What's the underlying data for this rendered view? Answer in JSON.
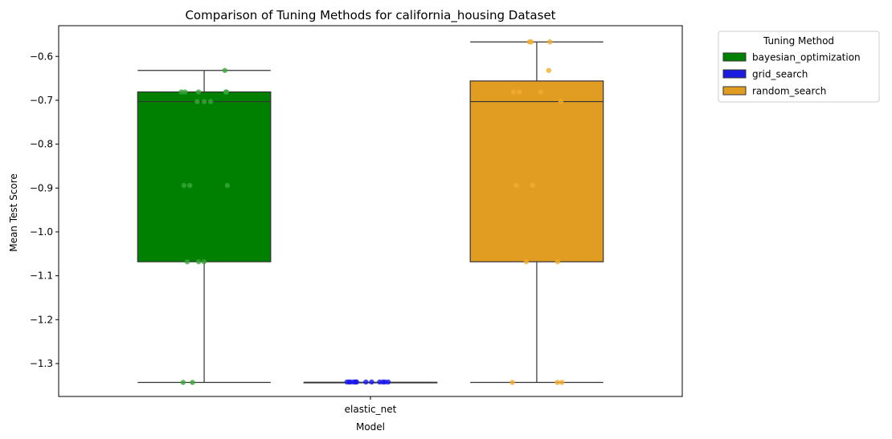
{
  "chart_data": {
    "type": "box",
    "title": "Comparison of Tuning Methods for california_housing Dataset",
    "xlabel": "Model",
    "ylabel": "Mean Test Score",
    "categories": [
      "elastic_net"
    ],
    "ylim": [
      -1.375,
      -0.53
    ],
    "yticks": [
      -0.6,
      -0.7,
      -0.8,
      -0.9,
      -1.0,
      -1.1,
      -1.2,
      -1.3
    ],
    "ytick_labels": [
      "−0.6",
      "−0.7",
      "−0.8",
      "−0.9",
      "−1.0",
      "−1.1",
      "−1.2",
      "−1.3"
    ],
    "legend": {
      "title": "Tuning Method",
      "placement": "outside-upper-right"
    },
    "series": [
      {
        "name": "bayesian_optimization",
        "color": "#008000",
        "point_color": "#3aa63a",
        "box": {
          "whisker_low": -1.343,
          "q1": -1.068,
          "median": -0.703,
          "q3": -0.681,
          "whisker_high": -0.632
        },
        "points": [
          -0.632,
          -0.681,
          -0.681,
          -0.681,
          -0.681,
          -0.681,
          -0.703,
          -0.703,
          -0.703,
          -0.894,
          -0.894,
          -0.894,
          -1.068,
          -1.068,
          -1.068,
          -1.343,
          -1.343
        ]
      },
      {
        "name": "grid_search",
        "color": "#1c1ce0",
        "point_color": "#1a1af0",
        "box": {
          "whisker_low": -1.343,
          "q1": -1.343,
          "median": -1.343,
          "q3": -1.343,
          "whisker_high": -1.343
        },
        "points": [
          -1.342,
          -1.342,
          -1.342,
          -1.342,
          -1.342,
          -1.342,
          -1.342,
          -1.342,
          -1.342,
          -1.342,
          -1.342,
          -1.342,
          -1.342
        ]
      },
      {
        "name": "random_search",
        "color": "#e19c22",
        "point_color": "#f4ad2e",
        "box": {
          "whisker_low": -1.343,
          "q1": -1.068,
          "median": -0.703,
          "q3": -0.656,
          "whisker_high": -0.567
        },
        "points": [
          -0.567,
          -0.567,
          -0.567,
          -0.632,
          -0.681,
          -0.681,
          -0.681,
          -0.703,
          -0.894,
          -0.894,
          -1.068,
          -1.068,
          -1.343,
          -1.343,
          -1.343
        ]
      }
    ]
  }
}
